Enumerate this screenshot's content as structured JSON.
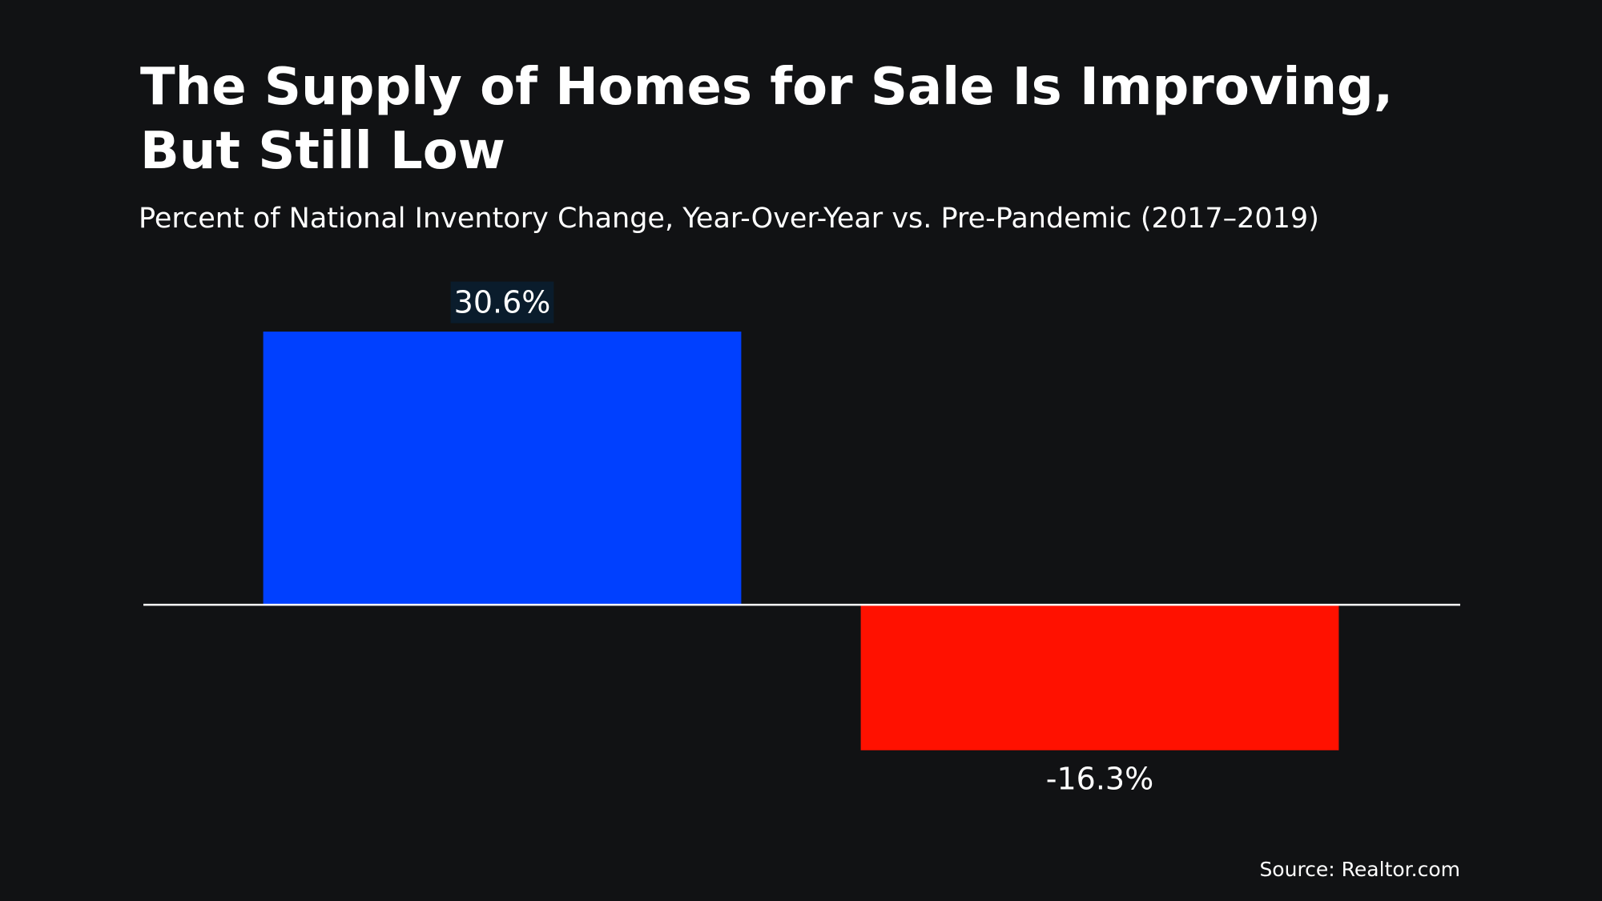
{
  "chart_data": {
    "type": "bar",
    "title": "The Supply of Homes for Sale Is Improving, But Still Low",
    "subtitle": "Percent of National Inventory Change, Year-Over-Year vs. Pre-Pandemic (2017–2019)",
    "categories": [
      null,
      null
    ],
    "values": [
      30.6,
      -16.3
    ],
    "value_labels": [
      "30.6%",
      "-16.3%"
    ],
    "colors": [
      "#0040ff",
      "#ff1100"
    ],
    "ylim": [
      -20,
      35
    ],
    "source": "Source: Realtor.com"
  }
}
